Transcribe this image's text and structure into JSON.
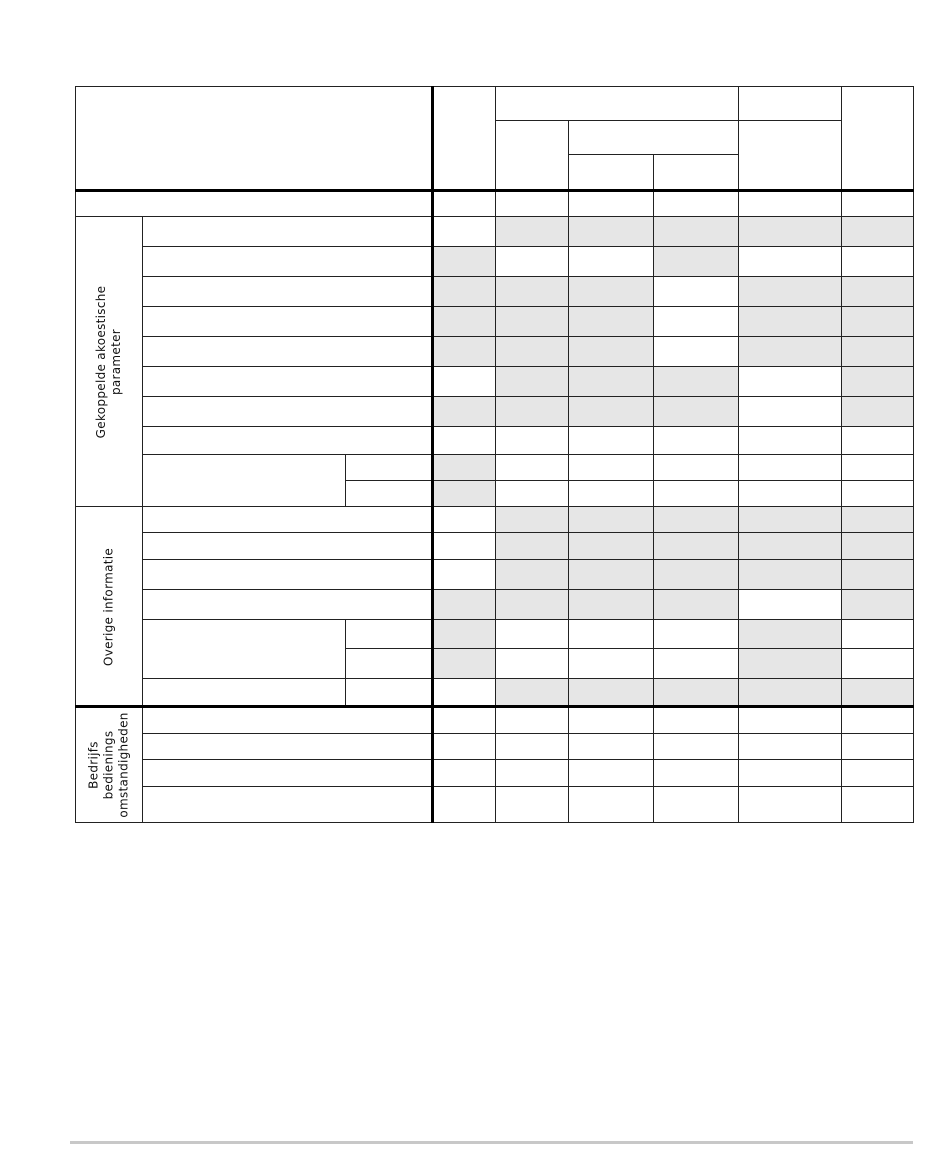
{
  "table": {
    "groups": [
      {
        "label": "Gekoppelde akoestische\nparameter"
      },
      {
        "label": "Overige informatie"
      },
      {
        "label": "Bedrijfs\nbedienings\nomstandigheden"
      }
    ],
    "shade_color": "#e6e6e6",
    "shaded_rows": [
      [
        false,
        true,
        true,
        true,
        true,
        true
      ],
      [
        true,
        false,
        false,
        true,
        false,
        false
      ],
      [
        true,
        true,
        true,
        false,
        true,
        true
      ],
      [
        true,
        true,
        true,
        false,
        true,
        true
      ],
      [
        true,
        true,
        true,
        false,
        true,
        true
      ],
      [
        false,
        true,
        true,
        true,
        false,
        true
      ],
      [
        true,
        true,
        true,
        true,
        false,
        true
      ],
      [
        false,
        false,
        false,
        false,
        false,
        false
      ],
      [
        true,
        false,
        false,
        false,
        false,
        false
      ],
      [
        true,
        false,
        false,
        false,
        false,
        false
      ],
      [
        false,
        true,
        true,
        true,
        true,
        true
      ],
      [
        false,
        true,
        true,
        true,
        true,
        true
      ],
      [
        false,
        true,
        true,
        true,
        true,
        true
      ],
      [
        true,
        true,
        true,
        true,
        false,
        true
      ],
      [
        true,
        false,
        false,
        false,
        true,
        false
      ],
      [
        true,
        false,
        false,
        false,
        true,
        false
      ],
      [
        false,
        true,
        true,
        true,
        true,
        true
      ],
      [
        false,
        false,
        false,
        false,
        false,
        false
      ],
      [
        false,
        false,
        false,
        false,
        false,
        false
      ],
      [
        false,
        false,
        false,
        false,
        false,
        false
      ],
      [
        false,
        false,
        false,
        false,
        false,
        false
      ]
    ]
  }
}
